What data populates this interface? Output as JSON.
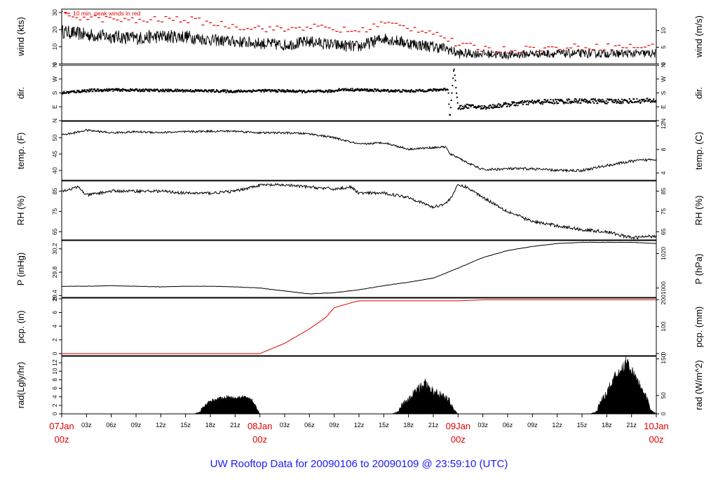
{
  "chart_data": {
    "type": "line",
    "title": "UW Rooftop Data for 20090106  to  20090109 @ 23:59:10  (UTC)",
    "x_axis": {
      "start": "2009-01-07T00:00Z",
      "end": "2009-01-10T00:00Z",
      "day_labels": [
        {
          "hour": 0,
          "label": "07Jan",
          "sub": "00z"
        },
        {
          "hour": 24,
          "label": "08Jan",
          "sub": "00z"
        },
        {
          "hour": 48,
          "label": "09Jan",
          "sub": "00z"
        },
        {
          "hour": 72,
          "label": "10Jan",
          "sub": "00z"
        }
      ],
      "hour_labels": [
        "03z",
        "06z",
        "09z",
        "12z",
        "15z",
        "18z",
        "21z"
      ]
    },
    "panels": [
      {
        "id": "wind",
        "ylabel_left": "wind (kts)",
        "ylabel_right": "wind (m/s)",
        "ylim": [
          0,
          32
        ],
        "left_ticks": [
          {
            "v": 0,
            "t": "0"
          },
          {
            "v": 10,
            "t": "10"
          },
          {
            "v": 20,
            "t": "20"
          },
          {
            "v": 30,
            "t": "30"
          }
        ],
        "right_ticks": [
          {
            "v": 0,
            "t": "0"
          },
          {
            "v": 9.72,
            "t": "5"
          },
          {
            "v": 19.44,
            "t": "10"
          }
        ],
        "annotation": "10 min. peak winds in red",
        "series": [
          {
            "kind": "noisy_line",
            "color": "#000000",
            "x": [
              0,
              3,
              6,
              9,
              12,
              15,
              18,
              21,
              24,
              27,
              30,
              33,
              36,
              39,
              42,
              45,
              46.5,
              48,
              51,
              54,
              57,
              60,
              63,
              66,
              69,
              72
            ],
            "y": [
              19,
              17,
              16,
              15,
              16,
              16,
              14,
              13,
              12,
              11,
              13,
              11,
              10,
              15,
              12,
              10,
              9,
              6,
              6,
              5,
              6,
              6,
              6,
              6,
              6,
              6
            ],
            "amp": [
              4,
              4,
              4,
              4,
              4,
              4,
              3.5,
              3.5,
              3.5,
              3.5,
              3.5,
              3.5,
              3.5,
              3.5,
              3.5,
              3.5,
              3,
              3,
              2.5,
              2.5,
              2.5,
              2.5,
              2.5,
              2.5,
              2.5,
              2.5
            ]
          },
          {
            "kind": "dashes",
            "name": "10 min. peak winds",
            "color": "#e00000",
            "x": [
              0,
              3,
              6,
              9,
              12,
              15,
              18,
              21,
              24,
              27,
              30,
              33,
              36,
              39,
              42,
              45,
              46.5,
              48,
              51,
              54,
              57,
              60,
              63,
              66,
              69,
              72
            ],
            "y": [
              29,
              27,
              26,
              25,
              26,
              26,
              24,
              22,
              21,
              20,
              22,
              20,
              19,
              24,
              21,
              19,
              15,
              11,
              9,
              8,
              9,
              9,
              10,
              10,
              10,
              10
            ]
          }
        ]
      },
      {
        "id": "dir",
        "ylabel_left": "dir.",
        "ylabel_right": "dir.",
        "ylim": [
          0,
          360
        ],
        "left_ticks": [
          {
            "v": 0,
            "t": "N"
          },
          {
            "v": 90,
            "t": "E"
          },
          {
            "v": 180,
            "t": "S"
          },
          {
            "v": 270,
            "t": "W"
          },
          {
            "v": 360,
            "t": "N"
          }
        ],
        "right_ticks": [
          {
            "v": 0,
            "t": "N"
          },
          {
            "v": 90,
            "t": "E"
          },
          {
            "v": 180,
            "t": "S"
          },
          {
            "v": 270,
            "t": "W"
          },
          {
            "v": 360,
            "t": "N"
          }
        ],
        "series": [
          {
            "kind": "dots",
            "color": "#000000",
            "x": [
              0,
              3,
              6,
              9,
              12,
              15,
              18,
              21,
              24,
              27,
              30,
              33,
              33.5,
              36,
              39,
              42,
              45,
              46.8,
              47,
              47.5,
              48,
              49,
              51,
              54,
              57,
              60,
              63,
              66,
              69,
              72
            ],
            "y": [
              180,
              195,
              200,
              198,
              196,
              195,
              193,
              190,
              195,
              193,
              188,
              192,
              202,
              200,
              195,
              192,
              198,
              205,
              10,
              350,
              80,
              95,
              85,
              105,
              120,
              125,
              128,
              125,
              128,
              130
            ],
            "spread": [
              18,
              18,
              16,
              16,
              16,
              16,
              16,
              16,
              16,
              16,
              16,
              16,
              16,
              16,
              16,
              16,
              16,
              16,
              0,
              0,
              25,
              25,
              25,
              30,
              30,
              30,
              30,
              30,
              30,
              30
            ]
          }
        ]
      },
      {
        "id": "temp",
        "ylabel_left": "temp. (F)",
        "ylabel_right": "temp. (C)",
        "ylim": [
          37,
          55
        ],
        "left_ticks": [
          {
            "v": 40,
            "t": "40"
          },
          {
            "v": 45,
            "t": "45"
          },
          {
            "v": 50,
            "t": "50"
          }
        ],
        "right_ticks": [
          {
            "v": 39.2,
            "t": "4"
          },
          {
            "v": 46.4,
            "t": "8"
          },
          {
            "v": 53.6,
            "t": "12"
          }
        ],
        "series": [
          {
            "kind": "line",
            "color": "#000000",
            "x": [
              0,
              1,
              3,
              6,
              9,
              12,
              15,
              18,
              21,
              24,
              27,
              30,
              33,
              36,
              39,
              42,
              45,
              46.5,
              47,
              48,
              49,
              51,
              54,
              57,
              60,
              63,
              66,
              69,
              72
            ],
            "y": [
              51,
              51.2,
              52.3,
              51.5,
              51.8,
              51.6,
              51.8,
              52,
              52,
              51.5,
              51.5,
              51.2,
              50,
              48,
              48.5,
              46.5,
              47,
              47.2,
              45,
              44,
              42.5,
              40.2,
              40.5,
              40.5,
              40,
              40,
              41.5,
              42.8,
              43.5
            ],
            "amp": [
              0.3,
              0.3,
              0.3,
              0.3,
              0.3,
              0.3,
              0.3,
              0.3,
              0.3,
              0.3,
              0.3,
              0.3,
              0.3,
              0.3,
              0.3,
              0.3,
              0.3,
              0.3,
              0.3,
              0.3,
              0.3,
              0.4,
              0.4,
              0.4,
              0.4,
              0.4,
              0.4,
              0.4,
              0.4
            ]
          }
        ]
      },
      {
        "id": "rh",
        "ylabel_left": "RH (%)",
        "ylabel_right": "RH (%)",
        "ylim": [
          61,
          90
        ],
        "left_ticks": [
          {
            "v": 65,
            "t": "65"
          },
          {
            "v": 75,
            "t": "75"
          },
          {
            "v": 85,
            "t": "85"
          }
        ],
        "right_ticks": [
          {
            "v": 65,
            "t": "65"
          },
          {
            "v": 75,
            "t": "75"
          },
          {
            "v": 85,
            "t": "85"
          }
        ],
        "series": [
          {
            "kind": "line",
            "color": "#000000",
            "x": [
              0,
              1,
              2,
              3,
              6,
              9,
              12,
              15,
              18,
              21,
              24,
              27,
              30,
              33,
              35,
              36,
              39,
              42,
              45,
              46.5,
              47,
              48,
              49,
              51,
              54,
              57,
              60,
              63,
              66,
              69,
              72
            ],
            "y": [
              85,
              86,
              87,
              83,
              85,
              85,
              85,
              84,
              84,
              85,
              88,
              88,
              87,
              86,
              87,
              84,
              84,
              82,
              77,
              79,
              81,
              88,
              87,
              82,
              75,
              70,
              68,
              66,
              65,
              62,
              63
            ],
            "amp": [
              0.7,
              0.7,
              0.7,
              0.7,
              0.7,
              0.7,
              0.7,
              0.7,
              0.7,
              0.7,
              0.7,
              0.7,
              0.7,
              0.7,
              0.7,
              0.7,
              0.7,
              0.7,
              0.7,
              0.7,
              0.7,
              0.7,
              0.7,
              0.7,
              0.8,
              0.8,
              0.8,
              0.8,
              0.8,
              0.8,
              0.8
            ]
          }
        ]
      },
      {
        "id": "pres",
        "ylabel_left": "P (inHg)",
        "ylabel_right": "P (hPa)",
        "ylim": [
          29.37,
          30.34
        ],
        "left_ticks": [
          {
            "v": 29.4,
            "t": "29.4"
          },
          {
            "v": 29.8,
            "t": "29.8"
          },
          {
            "v": 30.2,
            "t": "30.2"
          }
        ],
        "right_ticks": [
          {
            "v": 29.53,
            "t": "1000"
          },
          {
            "v": 30.12,
            "t": "1020"
          }
        ],
        "series": [
          {
            "kind": "line",
            "color": "#000000",
            "x": [
              0,
              3,
              6,
              9,
              12,
              15,
              18,
              21,
              24,
              27,
              30,
              33,
              36,
              39,
              42,
              45,
              48,
              51,
              54,
              57,
              60,
              63,
              66,
              69,
              72
            ],
            "y": [
              29.56,
              29.56,
              29.57,
              29.56,
              29.55,
              29.56,
              29.56,
              29.55,
              29.53,
              29.48,
              29.43,
              29.45,
              29.5,
              29.57,
              29.63,
              29.7,
              29.87,
              30.05,
              30.17,
              30.24,
              30.29,
              30.31,
              30.31,
              30.31,
              30.29
            ],
            "amp": [
              0.003,
              0.003,
              0.003,
              0.003,
              0.003,
              0.003,
              0.003,
              0.003,
              0.003,
              0.003,
              0.003,
              0.003,
              0.003,
              0.003,
              0.003,
              0.003,
              0.003,
              0.003,
              0.003,
              0.003,
              0.003,
              0.003,
              0.003,
              0.003,
              0.003
            ]
          }
        ]
      },
      {
        "id": "pcp",
        "ylabel_left": "pcp. (in)",
        "ylabel_right": "pcp. (mm)",
        "ylim": [
          -0.3,
          8.1
        ],
        "left_ticks": [
          {
            "v": 0,
            "t": "0"
          },
          {
            "v": 2,
            "t": "2"
          },
          {
            "v": 4,
            "t": "4"
          },
          {
            "v": 6,
            "t": "6"
          },
          {
            "v": 8,
            "t": "8"
          }
        ],
        "right_ticks": [
          {
            "v": 0,
            "t": "0"
          },
          {
            "v": 3.94,
            "t": "100"
          },
          {
            "v": 7.87,
            "t": "200"
          }
        ],
        "series": [
          {
            "kind": "line",
            "color": "#e00000",
            "x": [
              0,
              24,
              27,
              30,
              32,
              33,
              35,
              36,
              48,
              51,
              72
            ],
            "y": [
              0,
              0,
              1.5,
              3.6,
              5.3,
              6.7,
              7.4,
              7.7,
              7.7,
              7.85,
              7.85
            ],
            "amp": [
              0,
              0,
              0,
              0,
              0,
              0,
              0,
              0,
              0,
              0,
              0
            ]
          }
        ]
      },
      {
        "id": "rad",
        "ylabel_left": "rad(Lgly/hr)",
        "ylabel_right": "rad (W/m^2)",
        "ylim": [
          0,
          13.5
        ],
        "left_ticks": [
          {
            "v": 0,
            "t": "0"
          },
          {
            "v": 2,
            "t": "2"
          },
          {
            "v": 4,
            "t": "4"
          },
          {
            "v": 6,
            "t": "6"
          },
          {
            "v": 8,
            "t": "8"
          },
          {
            "v": 10,
            "t": "10"
          },
          {
            "v": 12,
            "t": "12"
          }
        ],
        "right_ticks": [
          {
            "v": 0,
            "t": "0"
          },
          {
            "v": 4.3,
            "t": "50"
          },
          {
            "v": 12.9,
            "t": "150"
          }
        ],
        "series": [
          {
            "kind": "area",
            "color": "#000000",
            "x": [
              16,
              16.8,
              17,
              18,
              19,
              20,
              21,
              22,
              23,
              23.7,
              24,
              40,
              40.8,
              41,
              42,
              43,
              44,
              45,
              46,
              47,
              47.5,
              48,
              64,
              64.8,
              65,
              66,
              67,
              68,
              68.5,
              69,
              70,
              71,
              71.3,
              72
            ],
            "y": [
              0,
              0.5,
              1.5,
              3,
              3.6,
              4,
              3.8,
              4,
              3.5,
              1,
              0,
              0,
              0.5,
              1.5,
              3.5,
              5.5,
              7,
              5,
              4.5,
              3,
              1,
              0,
              0,
              0.5,
              2,
              5,
              9,
              11,
              13,
              10,
              7,
              3,
              1,
              0
            ],
            "amp": [
              0,
              0.2,
              0.3,
              0.4,
              0.4,
              0.4,
              0.4,
              0.4,
              0.3,
              0.2,
              0,
              0,
              0.3,
              0.6,
              1,
              1.2,
              1.3,
              1.2,
              1,
              0.8,
              0.3,
              0,
              0,
              0.3,
              0.6,
              1,
              1.3,
              1.5,
              1.5,
              1.3,
              1,
              0.6,
              0.3,
              0
            ]
          }
        ]
      }
    ]
  }
}
